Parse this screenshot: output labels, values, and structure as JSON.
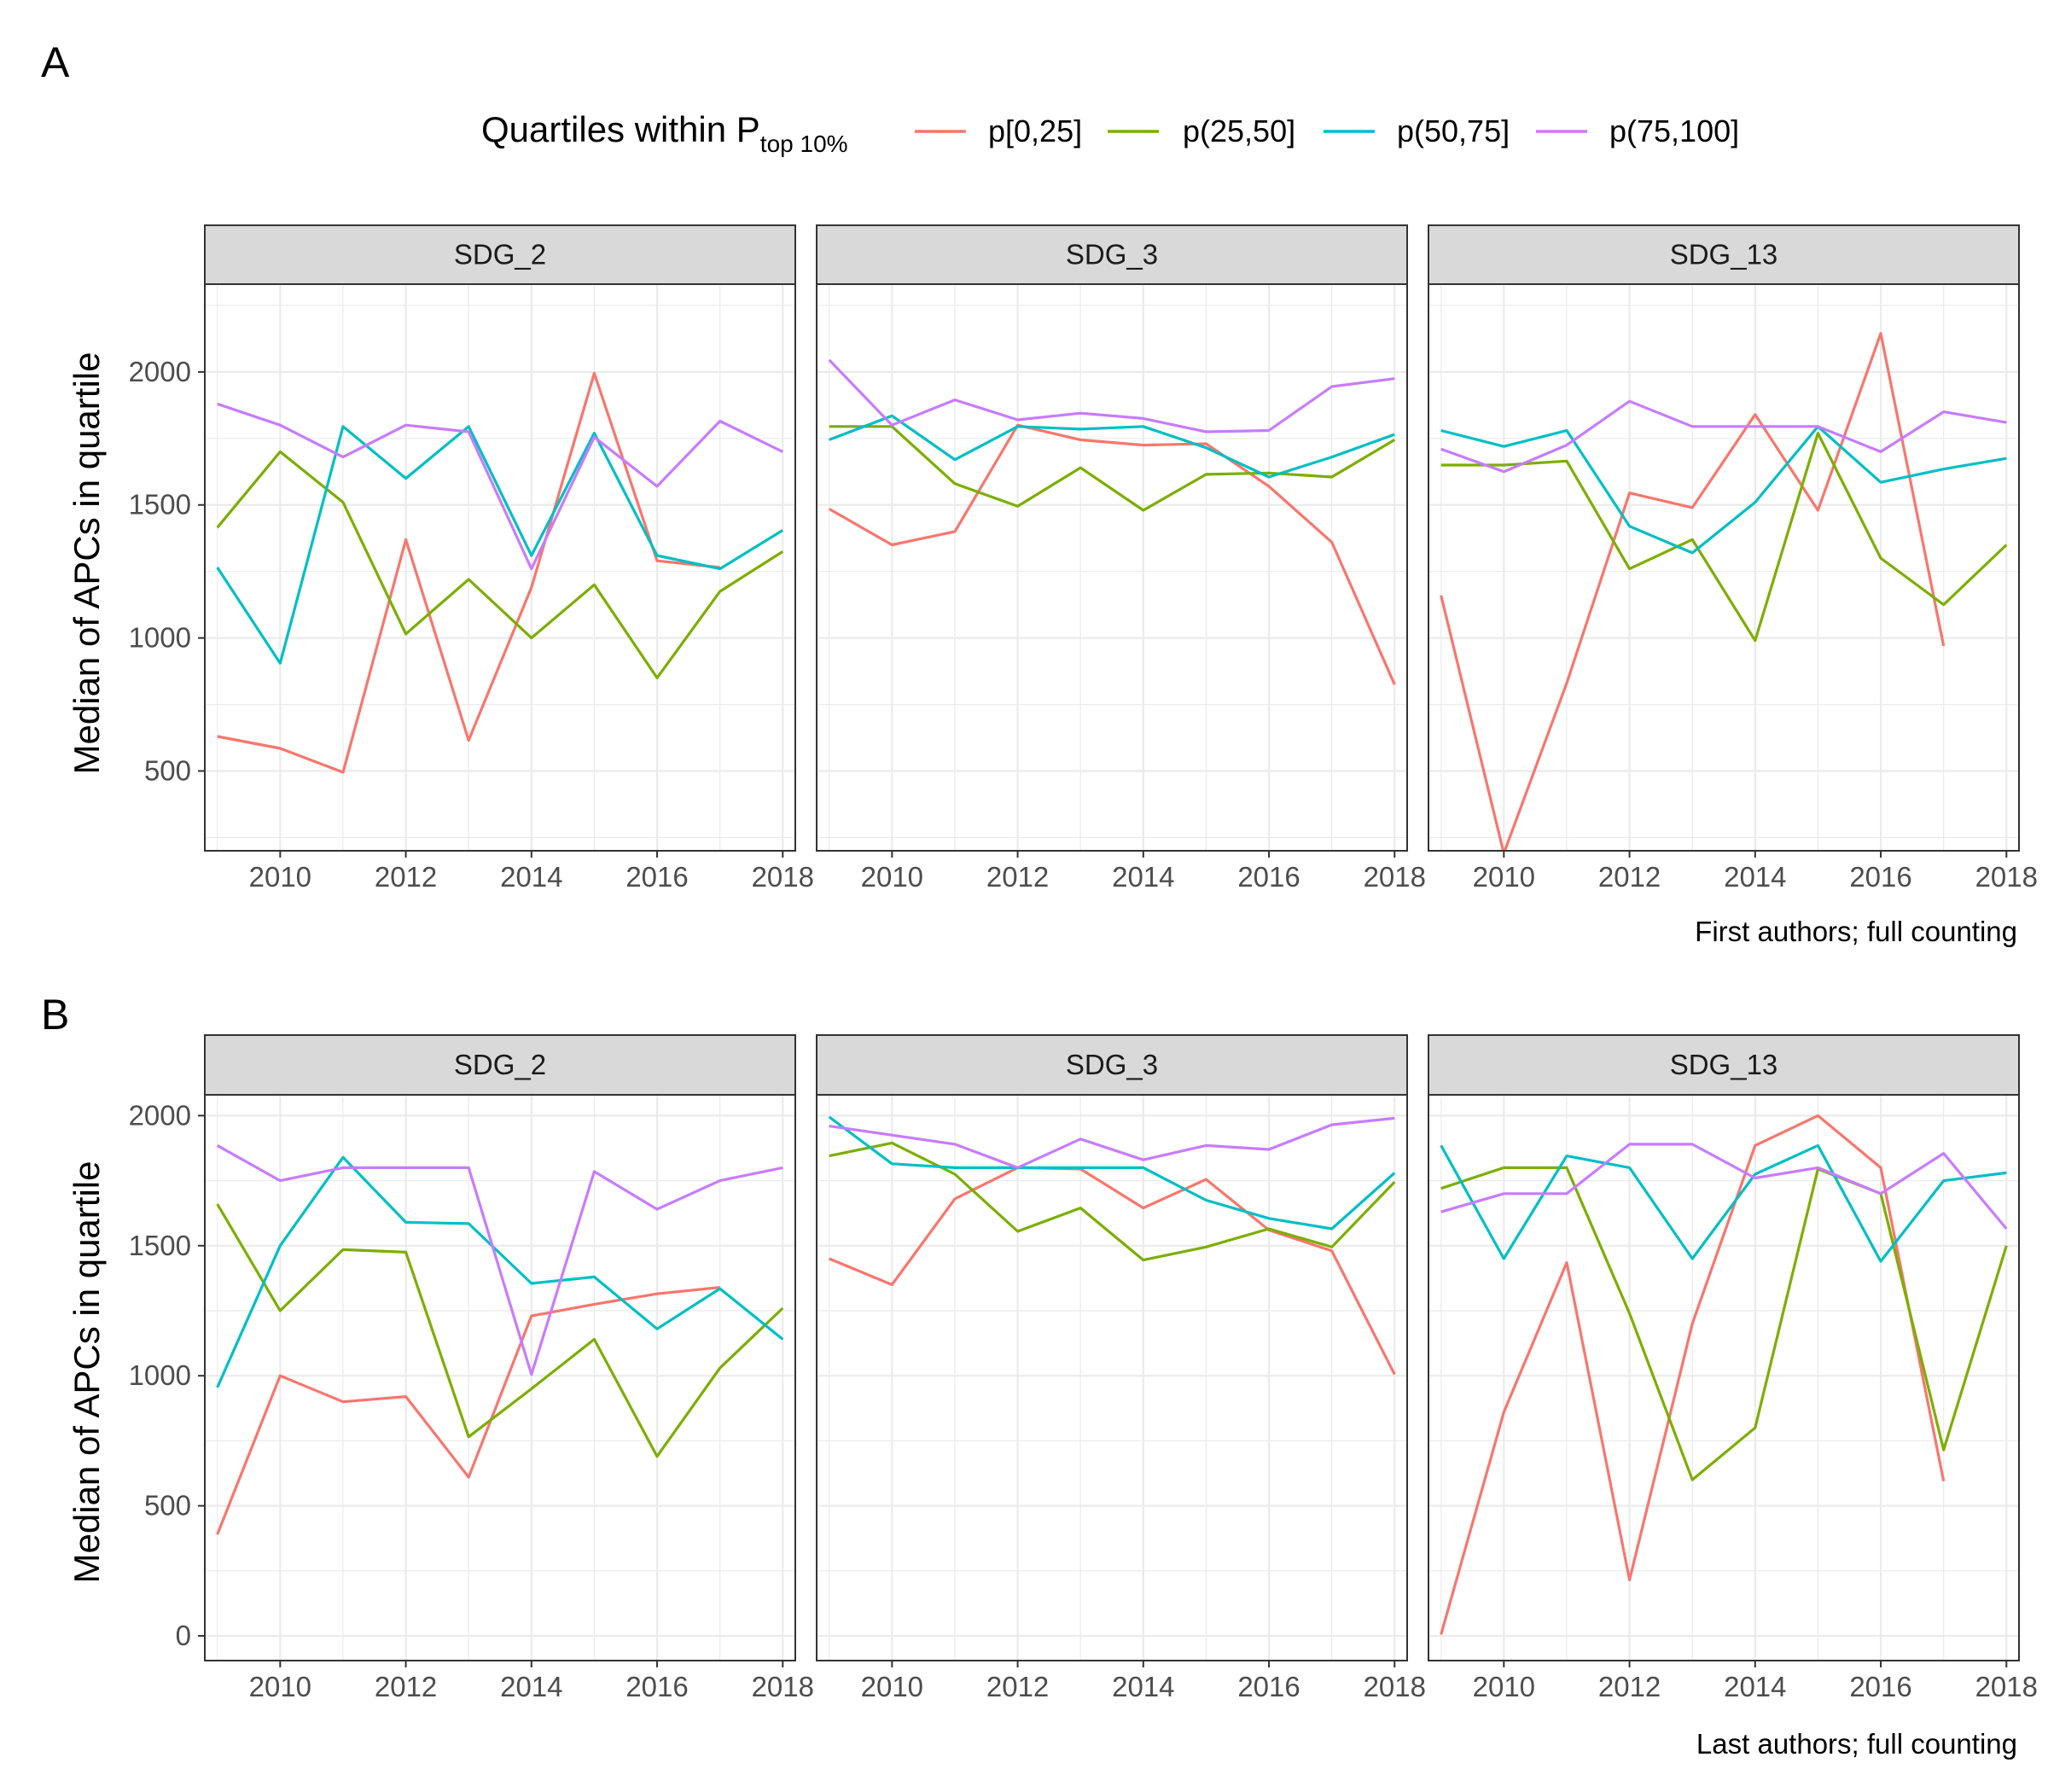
{
  "legend": {
    "title_main": "Quartiles within P",
    "title_sub": "top 10%",
    "series": [
      {
        "name": "p[0,25]",
        "color": "#F8766D"
      },
      {
        "name": "p(25,50]",
        "color": "#7CAE00"
      },
      {
        "name": "p(50,75]",
        "color": "#00BFC4"
      },
      {
        "name": "p(75,100]",
        "color": "#C77CFF"
      }
    ]
  },
  "chart_data": [
    {
      "type": "line",
      "panel_label": "A",
      "caption": "First authors; full counting",
      "ylabel": "Median of APCs in quartile",
      "xlabel": "",
      "xlim": [
        2008.8,
        2018.2
      ],
      "ylim": [
        200,
        2330
      ],
      "x_ticks": [
        "2010",
        "2012",
        "2014",
        "2016",
        "2018"
      ],
      "y_ticks": [
        "500",
        "1000",
        "1500",
        "2000"
      ],
      "facets": [
        {
          "strip": "SDG_2",
          "x": [
            2009,
            2010,
            2011,
            2012,
            2013,
            2014,
            2015,
            2016,
            2017,
            2018
          ],
          "series": [
            {
              "name": "p[0,25]",
              "values": [
                630,
                585,
                495,
                1370,
                615,
                1190,
                1995,
                1290,
                1265,
                null
              ]
            },
            {
              "name": "p(25,50]",
              "values": [
                1415,
                1700,
                1510,
                1015,
                1220,
                1000,
                1200,
                850,
                1175,
                1325
              ]
            },
            {
              "name": "p(50,75]",
              "values": [
                1265,
                905,
                1795,
                1600,
                1795,
                1310,
                1770,
                1310,
                1260,
                1405
              ]
            },
            {
              "name": "p(75,100]",
              "values": [
                1880,
                1800,
                1680,
                1800,
                1775,
                1260,
                1755,
                1570,
                1815,
                1700
              ]
            }
          ]
        },
        {
          "strip": "SDG_3",
          "x": [
            2009,
            2010,
            2011,
            2012,
            2013,
            2014,
            2015,
            2016,
            2017,
            2018
          ],
          "series": [
            {
              "name": "p[0,25]",
              "values": [
                1485,
                1350,
                1400,
                1800,
                1745,
                1725,
                1730,
                1570,
                1360,
                825
              ]
            },
            {
              "name": "p(25,50]",
              "values": [
                1795,
                1795,
                1580,
                1495,
                1640,
                1480,
                1615,
                1620,
                1605,
                1745
              ]
            },
            {
              "name": "p(50,75]",
              "values": [
                1745,
                1835,
                1670,
                1795,
                1785,
                1795,
                1715,
                1605,
                1680,
                1765
              ]
            },
            {
              "name": "p(75,100]",
              "values": [
                2045,
                1800,
                1895,
                1820,
                1845,
                1825,
                1775,
                1780,
                1945,
                1975
              ]
            }
          ]
        },
        {
          "strip": "SDG_13",
          "x": [
            2009,
            2010,
            2011,
            2012,
            2013,
            2014,
            2015,
            2016,
            2017,
            2018
          ],
          "series": [
            {
              "name": "p[0,25]",
              "values": [
                1160,
                190,
                830,
                1545,
                1490,
                1840,
                1480,
                2145,
                970,
                null
              ]
            },
            {
              "name": "p(25,50]",
              "values": [
                1650,
                1650,
                1665,
                1260,
                1370,
                990,
                1770,
                1300,
                1125,
                1350
              ]
            },
            {
              "name": "p(50,75]",
              "values": [
                1780,
                1720,
                1780,
                1420,
                1320,
                1510,
                1795,
                1585,
                1635,
                1675
              ]
            },
            {
              "name": "p(75,100]",
              "values": [
                1710,
                1625,
                1725,
                1890,
                1795,
                1795,
                1795,
                1700,
                1850,
                1810
              ]
            }
          ]
        }
      ]
    },
    {
      "type": "line",
      "panel_label": "B",
      "caption": "Last authors; full counting",
      "ylabel": "Median of APCs in quartile",
      "xlabel": "",
      "xlim": [
        2008.8,
        2018.2
      ],
      "ylim": [
        -95,
        2080
      ],
      "x_ticks": [
        "2010",
        "2012",
        "2014",
        "2016",
        "2018"
      ],
      "y_ticks": [
        "0",
        "500",
        "1000",
        "1500",
        "2000"
      ],
      "facets": [
        {
          "strip": "SDG_2",
          "x": [
            2009,
            2010,
            2011,
            2012,
            2013,
            2014,
            2015,
            2016,
            2017,
            2018
          ],
          "series": [
            {
              "name": "p[0,25]",
              "values": [
                390,
                1000,
                900,
                920,
                610,
                1230,
                1275,
                1315,
                1340,
                null
              ]
            },
            {
              "name": "p(25,50]",
              "values": [
                1660,
                1250,
                1485,
                1475,
                765,
                950,
                1140,
                690,
                1030,
                1260
              ]
            },
            {
              "name": "p(50,75]",
              "values": [
                955,
                1500,
                1840,
                1590,
                1585,
                1355,
                1380,
                1180,
                1335,
                1140
              ]
            },
            {
              "name": "p(75,100]",
              "values": [
                1885,
                1750,
                1800,
                1800,
                1800,
                1005,
                1785,
                1640,
                1750,
                1800
              ]
            }
          ]
        },
        {
          "strip": "SDG_3",
          "x": [
            2009,
            2010,
            2011,
            2012,
            2013,
            2014,
            2015,
            2016,
            2017,
            2018
          ],
          "series": [
            {
              "name": "p[0,25]",
              "values": [
                1450,
                1350,
                1680,
                1800,
                1795,
                1645,
                1755,
                1560,
                1480,
                1005
              ]
            },
            {
              "name": "p(25,50]",
              "values": [
                1845,
                1895,
                1775,
                1555,
                1645,
                1445,
                1495,
                1565,
                1495,
                1745
              ]
            },
            {
              "name": "p(50,75]",
              "values": [
                1995,
                1815,
                1800,
                1800,
                1800,
                1800,
                1675,
                1605,
                1565,
                1780
              ]
            },
            {
              "name": "p(75,100]",
              "values": [
                1960,
                1925,
                1890,
                1800,
                1910,
                1830,
                1885,
                1870,
                1965,
                1990
              ]
            }
          ]
        },
        {
          "strip": "SDG_13",
          "x": [
            2009,
            2010,
            2011,
            2012,
            2013,
            2014,
            2015,
            2016,
            2017,
            2018
          ],
          "series": [
            {
              "name": "p[0,25]",
              "values": [
                5,
                860,
                1435,
                215,
                1200,
                1885,
                2000,
                1800,
                595,
                null
              ]
            },
            {
              "name": "p(25,50]",
              "values": [
                1720,
                1800,
                1800,
                1240,
                600,
                800,
                1795,
                1700,
                715,
                1500
              ]
            },
            {
              "name": "p(50,75]",
              "values": [
                1885,
                1450,
                1845,
                1800,
                1450,
                1775,
                1885,
                1440,
                1750,
                1780
              ]
            },
            {
              "name": "p(75,100]",
              "values": [
                1630,
                1700,
                1700,
                1890,
                1890,
                1760,
                1800,
                1700,
                1855,
                1565
              ]
            }
          ]
        }
      ]
    }
  ]
}
